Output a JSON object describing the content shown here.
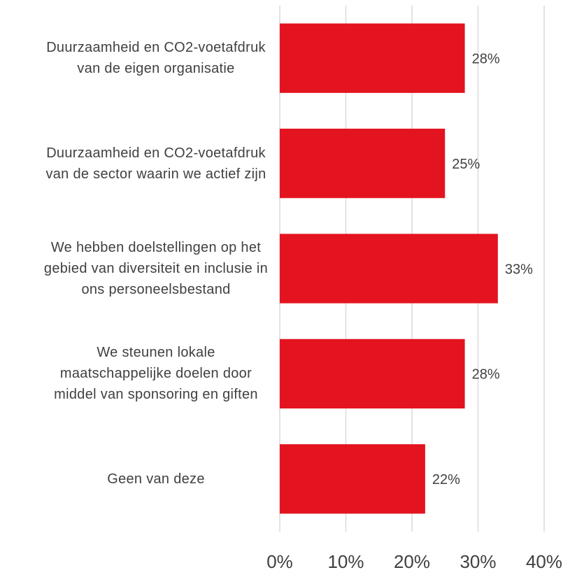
{
  "chart_data": {
    "type": "barh",
    "categories": [
      "Duurzaamheid en CO2-voetafdruk van de eigen organisatie",
      "Duurzaamheid en CO2-voetafdruk van de sector waarin we actief zijn",
      "We hebben doelstellingen op het gebied van diversiteit en inclusie in ons personeelsbestand",
      "We steunen lokale maatschappelijke doelen door middel van sponsoring en giften",
      "Geen van deze"
    ],
    "values": [
      28,
      25,
      33,
      28,
      22
    ],
    "value_labels": [
      "28%",
      "25%",
      "33%",
      "28%",
      "22%"
    ],
    "color": "#e3141f",
    "xlim": [
      0,
      40
    ],
    "xticks": [
      {
        "value": 0,
        "label": "0%"
      },
      {
        "value": 10,
        "label": "10%"
      },
      {
        "value": 20,
        "label": "20%"
      },
      {
        "value": 30,
        "label": "30%"
      },
      {
        "value": 40,
        "label": "40%"
      }
    ],
    "grid": true
  }
}
